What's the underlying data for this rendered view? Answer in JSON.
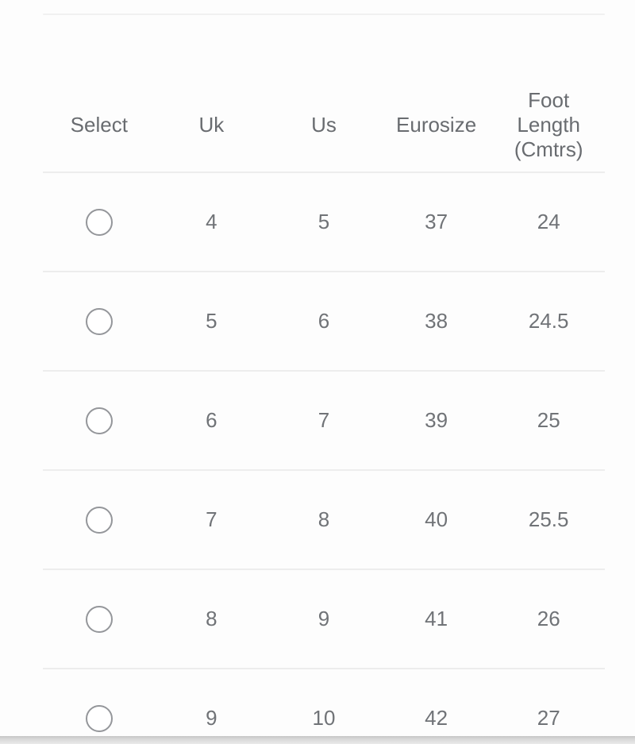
{
  "colors": {
    "background": "#fdfdfd",
    "header_text": "#696c70",
    "cell_text": "#707377",
    "divider": "#ededed",
    "radio_border": "#94969a",
    "bottom_bar": "#d7d7d7"
  },
  "table": {
    "headers": [
      {
        "id": "select",
        "label": "Select"
      },
      {
        "id": "uk",
        "label": "Uk"
      },
      {
        "id": "us",
        "label": "Us"
      },
      {
        "id": "eurosize",
        "label": "Eurosize"
      },
      {
        "id": "foot_length",
        "label": "Foot Length (Cmtrs)"
      }
    ],
    "rows": [
      {
        "selected": false,
        "uk": "4",
        "us": "5",
        "eurosize": "37",
        "foot_length_cm": "24"
      },
      {
        "selected": false,
        "uk": "5",
        "us": "6",
        "eurosize": "38",
        "foot_length_cm": "24.5"
      },
      {
        "selected": false,
        "uk": "6",
        "us": "7",
        "eurosize": "39",
        "foot_length_cm": "25"
      },
      {
        "selected": false,
        "uk": "7",
        "us": "8",
        "eurosize": "40",
        "foot_length_cm": "25.5"
      },
      {
        "selected": false,
        "uk": "8",
        "us": "9",
        "eurosize": "41",
        "foot_length_cm": "26"
      },
      {
        "selected": false,
        "uk": "9",
        "us": "10",
        "eurosize": "42",
        "foot_length_cm": "27"
      }
    ]
  }
}
